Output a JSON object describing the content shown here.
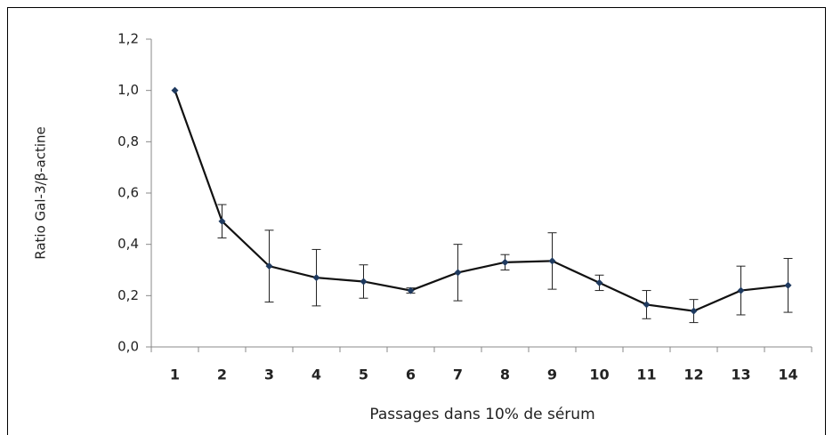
{
  "chart_data": {
    "type": "line",
    "x_label": "Passages dans 10% de sérum",
    "y_label": "Ratio Gal-3/β-actine",
    "categories": [
      "1",
      "2",
      "3",
      "4",
      "5",
      "6",
      "7",
      "8",
      "9",
      "10",
      "11",
      "12",
      "13",
      "14"
    ],
    "series": [
      {
        "name": "Ratio Gal-3/β-actine",
        "color": "#111111",
        "values": [
          1.0,
          0.49,
          0.315,
          0.27,
          0.255,
          0.22,
          0.29,
          0.33,
          0.335,
          0.25,
          0.165,
          0.14,
          0.22,
          0.24
        ],
        "errors": [
          0,
          0.065,
          0.14,
          0.11,
          0.065,
          0.01,
          0.11,
          0.03,
          0.11,
          0.03,
          0.055,
          0.045,
          0.095,
          0.105
        ]
      }
    ],
    "ylim": [
      0,
      1.2
    ],
    "yticks": [
      {
        "value": 0,
        "label": "0,0"
      },
      {
        "value": 0.2,
        "label": "0,2"
      },
      {
        "value": 0.4,
        "label": "0,4"
      },
      {
        "value": 0.6,
        "label": "0,6"
      },
      {
        "value": 0.8,
        "label": "0,8"
      },
      {
        "value": 1.0,
        "label": "1,0"
      },
      {
        "value": 1.2,
        "label": "1,2"
      }
    ]
  }
}
